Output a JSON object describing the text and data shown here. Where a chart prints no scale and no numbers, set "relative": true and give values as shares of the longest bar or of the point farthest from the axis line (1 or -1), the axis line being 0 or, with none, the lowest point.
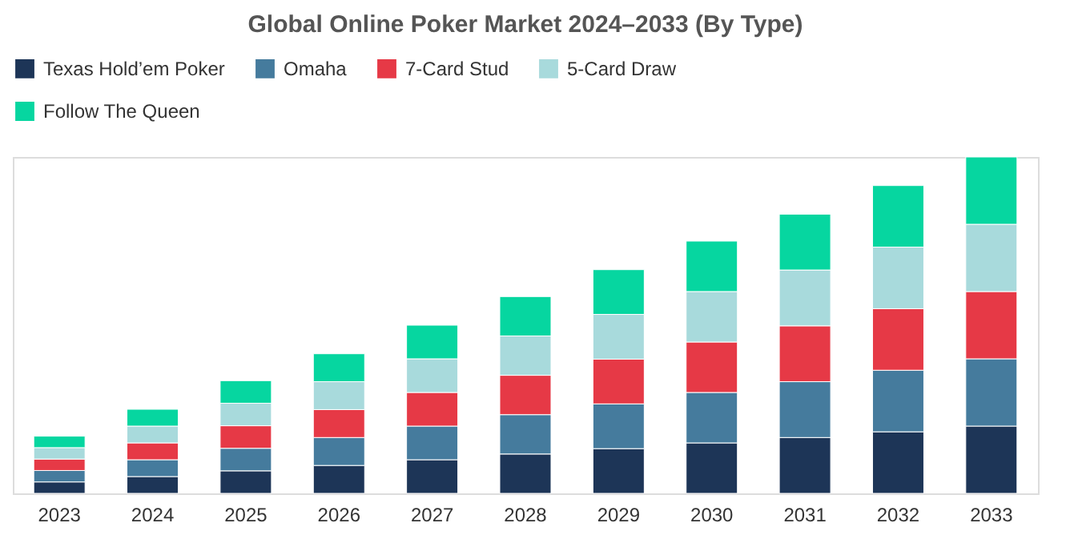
{
  "chart_data": {
    "type": "bar",
    "title": "Global Online Poker Market 2024–2033 (By Type)",
    "categories": [
      "2023",
      "2024",
      "2025",
      "2026",
      "2027",
      "2028",
      "2029",
      "2030",
      "2031",
      "2032",
      "2033"
    ],
    "stacked": true,
    "relative": true,
    "legend": "top",
    "grid": false,
    "series": [
      {
        "name": "Texas Hold’em Poker",
        "color": "#1d3557",
        "values": [
          0.034,
          0.05,
          0.067,
          0.083,
          0.1,
          0.117,
          0.133,
          0.15,
          0.166,
          0.183,
          0.2
        ]
      },
      {
        "name": "Omaha",
        "color": "#457b9d",
        "values": [
          0.034,
          0.05,
          0.067,
          0.083,
          0.1,
          0.117,
          0.133,
          0.15,
          0.166,
          0.183,
          0.2
        ]
      },
      {
        "name": "7-Card Stud",
        "color": "#e63946",
        "values": [
          0.034,
          0.05,
          0.067,
          0.083,
          0.1,
          0.117,
          0.133,
          0.15,
          0.166,
          0.183,
          0.2
        ]
      },
      {
        "name": "5-Card Draw",
        "color": "#a8dadc",
        "values": [
          0.034,
          0.05,
          0.067,
          0.083,
          0.1,
          0.117,
          0.133,
          0.15,
          0.166,
          0.183,
          0.2
        ]
      },
      {
        "name": "Follow The Queen",
        "color": "#06d6a0",
        "values": [
          0.034,
          0.05,
          0.067,
          0.083,
          0.1,
          0.117,
          0.133,
          0.15,
          0.166,
          0.183,
          0.2
        ]
      }
    ]
  }
}
